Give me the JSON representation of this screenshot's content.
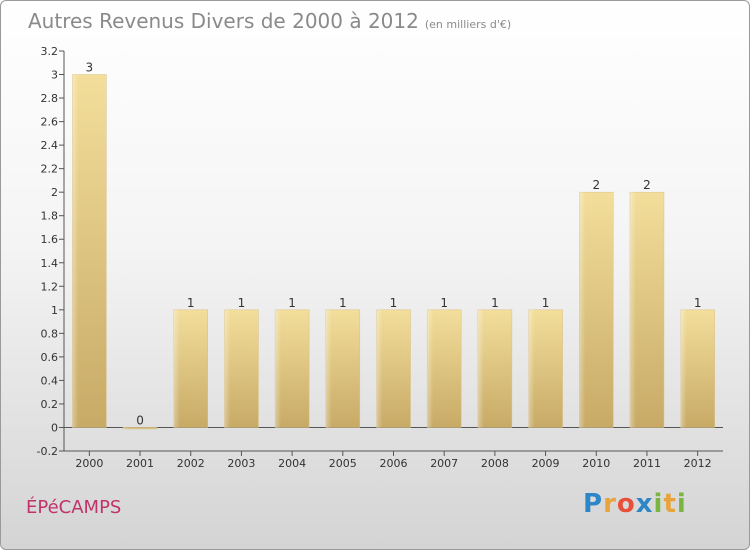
{
  "title": "Autres Revenus Divers de 2000 à 2012",
  "unit": "(en milliers d'€)",
  "place": "ÉPéCAMPS",
  "logo": {
    "text": "Proxiti",
    "colors": [
      "#2d86c8",
      "#e8a43a",
      "#e8503a",
      "#2d86c8",
      "#7ab542",
      "#e8a43a",
      "#7ab542"
    ]
  },
  "colors": {
    "bar_light": "#f3de9b",
    "bar_dark": "#c7aa66",
    "title": "#8a8a8a",
    "place": "#c0336a"
  },
  "chart_data": {
    "type": "bar",
    "categories": [
      "2000",
      "2001",
      "2002",
      "2003",
      "2004",
      "2005",
      "2006",
      "2007",
      "2008",
      "2009",
      "2010",
      "2011",
      "2012"
    ],
    "values": [
      3,
      0,
      1,
      1,
      1,
      1,
      1,
      1,
      1,
      1,
      2,
      2,
      1
    ],
    "value_labels": [
      "3",
      "0",
      "1",
      "1",
      "1",
      "1",
      "1",
      "1",
      "1",
      "1",
      "2",
      "2",
      "1"
    ],
    "ylim": [
      -0.2,
      3.2
    ],
    "yticks": [
      -0.2,
      0,
      0.2,
      0.4,
      0.6,
      0.8,
      1,
      1.2,
      1.4,
      1.6,
      1.8,
      2,
      2.2,
      2.4,
      2.6,
      2.8,
      3,
      3.2
    ],
    "ytick_labels": [
      "-0.2",
      "0",
      "0.2",
      "0.4",
      "0.6",
      "0.8",
      "1",
      "1.2",
      "1.4",
      "1.6",
      "1.8",
      "2",
      "2.2",
      "2.4",
      "2.6",
      "2.8",
      "3",
      "3.2"
    ],
    "grid": false,
    "legend": "none"
  }
}
